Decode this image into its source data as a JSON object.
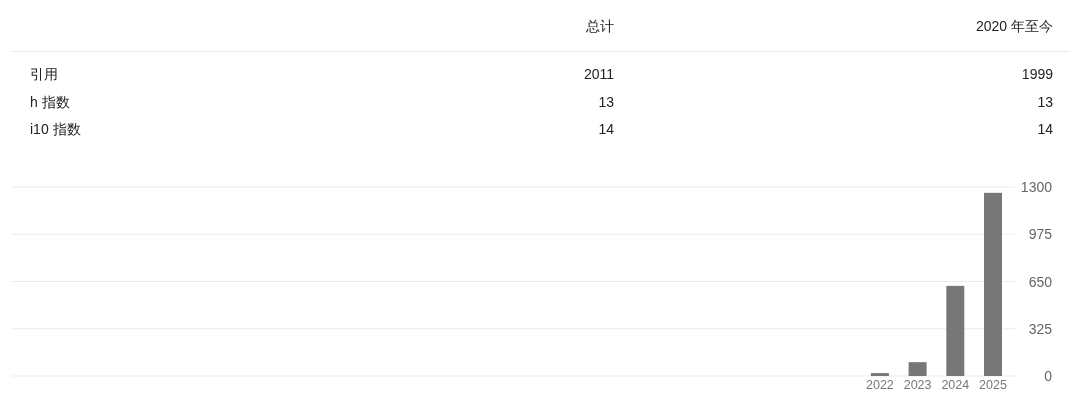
{
  "chart_data": [
    {
      "type": "other",
      "annotations": [
        "总计",
        "2020 年至今",
        "引用",
        "2011",
        "1999",
        "h 指数",
        "13",
        "13",
        "i10 指数",
        "14",
        "14"
      ]
    },
    {
      "type": "bar",
      "categories": [
        "2022",
        "2023",
        "2024",
        "2025"
      ],
      "values": [
        20,
        95,
        620,
        1260
      ],
      "color": "#777777",
      "ylim": [
        0,
        1300
      ],
      "yticks": [
        0,
        325,
        650,
        975,
        1300
      ],
      "grid": "y"
    }
  ]
}
